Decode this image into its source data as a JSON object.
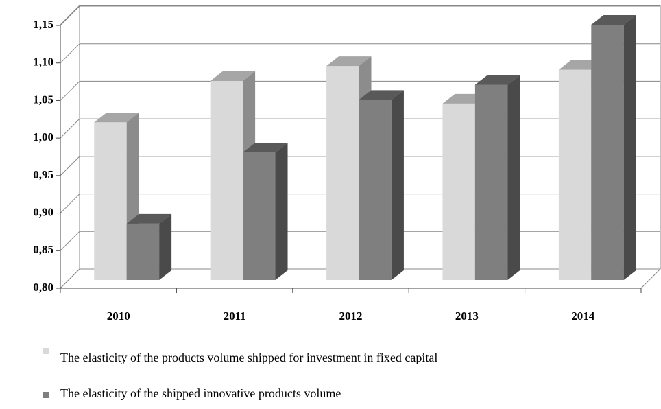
{
  "chart_data": {
    "type": "bar3d",
    "categories": [
      "2010",
      "2011",
      "2012",
      "2013",
      "2014"
    ],
    "series": [
      {
        "name": "The elasticity of the products volume shipped for investment in fixed capital",
        "color": "#d9d9d9",
        "values": [
          1.01,
          1.065,
          1.085,
          1.035,
          1.08
        ]
      },
      {
        "name": "The elasticity of the shipped innovative products volume",
        "color": "#7f7f7f",
        "values": [
          0.875,
          0.97,
          1.04,
          1.06,
          1.14
        ]
      }
    ],
    "ylim": [
      0.8,
      1.15
    ],
    "yticks": [
      {
        "value": 0.8,
        "label": "0,80"
      },
      {
        "value": 0.85,
        "label": "0,85"
      },
      {
        "value": 0.9,
        "label": "0,90"
      },
      {
        "value": 0.95,
        "label": "0,95"
      },
      {
        "value": 1.0,
        "label": "1,00"
      },
      {
        "value": 1.05,
        "label": "1,05"
      },
      {
        "value": 1.1,
        "label": "1,10"
      },
      {
        "value": 1.15,
        "label": "1,15"
      }
    ],
    "grid": true
  }
}
